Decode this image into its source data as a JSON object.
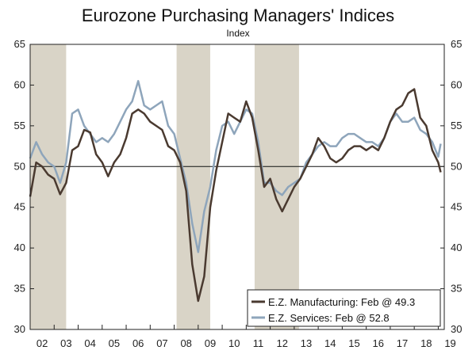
{
  "chart_data": {
    "type": "line",
    "title": "Eurozone Purchasing Managers' Indices",
    "subtitle": "Index",
    "xlabel": "",
    "ylabel": "",
    "ylim": [
      30,
      65
    ],
    "yticks": [
      30,
      35,
      40,
      45,
      50,
      55,
      60,
      65
    ],
    "xlim": [
      2002.0,
      2019.25
    ],
    "xtick_labels": [
      "02",
      "03",
      "04",
      "05",
      "06",
      "07",
      "08",
      "09",
      "10",
      "11",
      "12",
      "13",
      "14",
      "15",
      "16",
      "17",
      "18",
      "19"
    ],
    "reference_line": 50,
    "recession_bands": [
      [
        2002.0,
        2003.5
      ],
      [
        2008.1,
        2009.5
      ],
      [
        2011.35,
        2013.2
      ]
    ],
    "legend": "bottom-right",
    "grid": false,
    "colors": {
      "manufacturing": "#4a3a30",
      "services": "#8ea5bb",
      "band": "#d9d4c7",
      "reference": "#111111"
    },
    "series": [
      {
        "name": "E.Z. Manufacturing: Feb @ 49.3",
        "key": "manufacturing",
        "x": [
          2002.0,
          2002.25,
          2002.5,
          2002.75,
          2003.0,
          2003.25,
          2003.5,
          2003.75,
          2004.0,
          2004.25,
          2004.5,
          2004.75,
          2005.0,
          2005.25,
          2005.5,
          2005.75,
          2006.0,
          2006.25,
          2006.5,
          2006.75,
          2007.0,
          2007.25,
          2007.5,
          2007.75,
          2008.0,
          2008.25,
          2008.5,
          2008.75,
          2009.0,
          2009.25,
          2009.5,
          2009.75,
          2010.0,
          2010.25,
          2010.5,
          2010.75,
          2011.0,
          2011.25,
          2011.5,
          2011.75,
          2012.0,
          2012.25,
          2012.5,
          2012.75,
          2013.0,
          2013.25,
          2013.5,
          2013.75,
          2014.0,
          2014.25,
          2014.5,
          2014.75,
          2015.0,
          2015.25,
          2015.5,
          2015.75,
          2016.0,
          2016.25,
          2016.5,
          2016.75,
          2017.0,
          2017.25,
          2017.5,
          2017.75,
          2018.0,
          2018.25,
          2018.5,
          2018.75,
          2019.0,
          2019.1
        ],
        "values": [
          46.3,
          50.5,
          50.0,
          49.0,
          48.5,
          46.6,
          48.0,
          52.0,
          52.5,
          54.5,
          54.2,
          51.5,
          50.5,
          48.8,
          50.5,
          51.5,
          53.5,
          56.5,
          57.0,
          56.5,
          55.5,
          55.0,
          54.5,
          52.5,
          52.0,
          50.5,
          47.0,
          38.0,
          33.5,
          36.5,
          45.0,
          49.5,
          53.0,
          56.5,
          56.0,
          55.5,
          58.0,
          56.0,
          52.0,
          47.5,
          48.5,
          46.0,
          44.5,
          46.0,
          47.5,
          48.5,
          50.0,
          51.5,
          53.5,
          52.5,
          51.0,
          50.5,
          51.0,
          52.0,
          52.5,
          52.5,
          52.0,
          52.5,
          52.0,
          53.5,
          55.5,
          57.0,
          57.5,
          59.0,
          59.5,
          56.0,
          55.0,
          52.0,
          50.5,
          49.3
        ]
      },
      {
        "name": "E.Z. Services: Feb @ 52.8",
        "key": "services",
        "x": [
          2002.0,
          2002.25,
          2002.5,
          2002.75,
          2003.0,
          2003.25,
          2003.5,
          2003.75,
          2004.0,
          2004.25,
          2004.5,
          2004.75,
          2005.0,
          2005.25,
          2005.5,
          2005.75,
          2006.0,
          2006.25,
          2006.5,
          2006.75,
          2007.0,
          2007.25,
          2007.5,
          2007.75,
          2008.0,
          2008.25,
          2008.5,
          2008.75,
          2009.0,
          2009.25,
          2009.5,
          2009.75,
          2010.0,
          2010.25,
          2010.5,
          2010.75,
          2011.0,
          2011.25,
          2011.5,
          2011.75,
          2012.0,
          2012.25,
          2012.5,
          2012.75,
          2013.0,
          2013.25,
          2013.5,
          2013.75,
          2014.0,
          2014.25,
          2014.5,
          2014.75,
          2015.0,
          2015.25,
          2015.5,
          2015.75,
          2016.0,
          2016.25,
          2016.5,
          2016.75,
          2017.0,
          2017.25,
          2017.5,
          2017.75,
          2018.0,
          2018.25,
          2018.5,
          2018.75,
          2019.0,
          2019.1
        ],
        "values": [
          51.0,
          53.0,
          51.5,
          50.5,
          50.0,
          48.0,
          50.5,
          56.5,
          57.0,
          55.0,
          54.0,
          53.0,
          53.5,
          53.0,
          54.0,
          55.5,
          57.0,
          58.0,
          60.5,
          57.5,
          57.0,
          57.5,
          58.0,
          55.0,
          54.0,
          51.0,
          48.0,
          43.0,
          39.5,
          44.5,
          47.5,
          52.0,
          55.0,
          55.5,
          54.0,
          55.5,
          57.0,
          56.5,
          53.0,
          48.0,
          48.0,
          47.0,
          46.5,
          47.5,
          48.0,
          48.5,
          50.5,
          51.5,
          52.5,
          53.0,
          52.5,
          52.5,
          53.5,
          54.0,
          54.0,
          53.5,
          53.0,
          53.0,
          52.5,
          53.5,
          55.5,
          56.5,
          55.5,
          55.5,
          56.0,
          54.5,
          54.0,
          53.0,
          51.2,
          52.8
        ]
      }
    ]
  }
}
